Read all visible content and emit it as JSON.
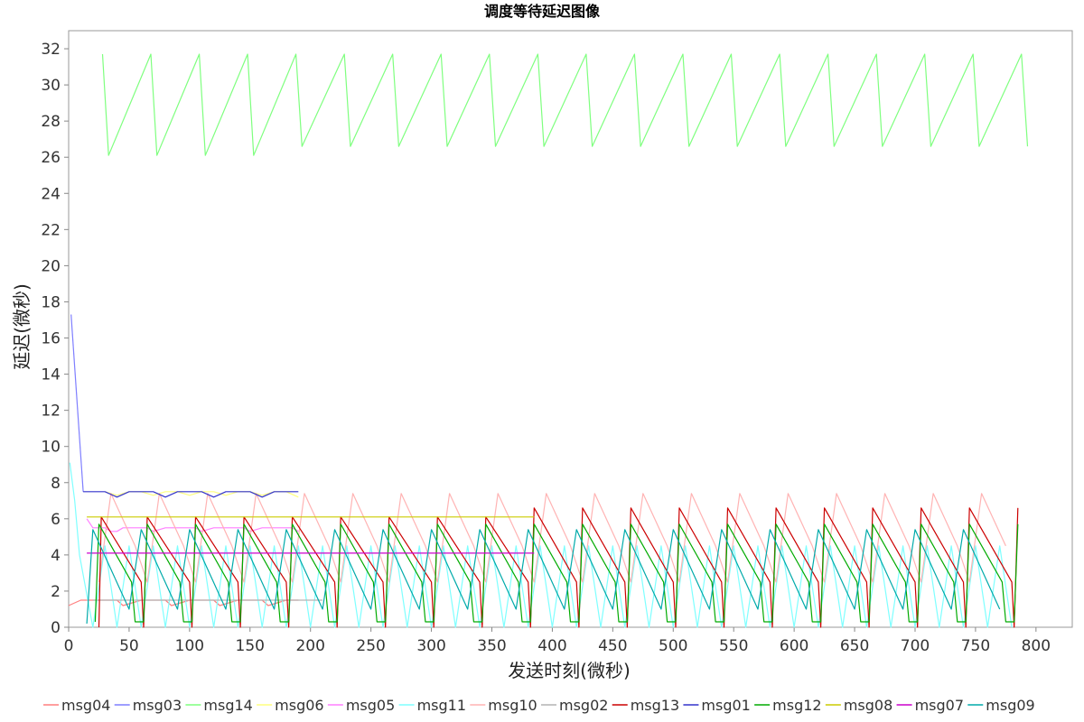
{
  "chart_data": {
    "type": "line",
    "title": "调度等待延迟图像",
    "xlabel": "发送时刻(微秒)",
    "ylabel": "延迟(微秒)",
    "xlim": [
      0,
      830
    ],
    "ylim": [
      0,
      33
    ],
    "xticks": [
      0,
      50,
      100,
      150,
      200,
      250,
      300,
      350,
      400,
      450,
      500,
      550,
      600,
      650,
      700,
      750,
      800
    ],
    "yticks": [
      0,
      2,
      4,
      6,
      8,
      10,
      12,
      14,
      16,
      18,
      20,
      22,
      24,
      26,
      28,
      30,
      32
    ],
    "legend_position": "bottom",
    "grid": false,
    "series": [
      {
        "name": "msg04",
        "color": "#ff7f7f",
        "x": [
          0,
          10,
          40,
          45,
          60,
          80,
          85,
          100,
          120,
          125,
          140,
          160,
          165,
          180,
          190
        ],
        "y": [
          1.2,
          1.5,
          1.5,
          1.2,
          1.5,
          1.5,
          1.2,
          1.5,
          1.5,
          1.2,
          1.5,
          1.5,
          1.2,
          1.5,
          1.5
        ]
      },
      {
        "name": "msg03",
        "color": "#7f7fff",
        "x": [
          2,
          12
        ],
        "y": [
          17.3,
          7.5
        ]
      },
      {
        "name": "msg14",
        "color": "#7fff7f",
        "x": [
          28,
          33,
          68,
          73,
          108,
          113,
          148,
          153,
          188,
          193,
          228,
          233,
          268,
          273,
          308,
          313,
          348,
          353,
          388,
          393,
          428,
          433,
          468,
          473,
          508,
          513,
          548,
          553,
          588,
          593,
          628,
          633,
          668,
          673,
          708,
          713,
          748,
          753,
          788,
          793
        ],
        "y": [
          31.7,
          26.1,
          31.7,
          26.1,
          31.7,
          26.1,
          31.7,
          26.1,
          31.7,
          26.6,
          31.7,
          26.6,
          31.7,
          26.6,
          31.7,
          26.6,
          31.7,
          26.6,
          31.7,
          26.6,
          31.7,
          26.6,
          31.7,
          26.6,
          31.7,
          26.6,
          31.7,
          26.6,
          31.7,
          26.6,
          31.7,
          26.6,
          31.7,
          26.6,
          31.7,
          26.6,
          31.7,
          26.6,
          31.7,
          26.6
        ]
      },
      {
        "name": "msg06",
        "color": "#ffff7f",
        "x": [
          30,
          40,
          50,
          60,
          70,
          80,
          90,
          100,
          110,
          120,
          130,
          140,
          150,
          160,
          170,
          180,
          190
        ],
        "y": [
          7.5,
          7.3,
          7.5,
          7.5,
          7.3,
          7.5,
          7.5,
          7.3,
          7.5,
          7.5,
          7.3,
          7.5,
          7.5,
          7.3,
          7.5,
          7.5,
          7.2
        ]
      },
      {
        "name": "msg05",
        "color": "#ff7fff",
        "x": [
          15,
          20,
          30,
          35,
          40,
          45,
          60,
          65,
          70,
          80,
          85,
          100,
          105,
          110,
          120,
          125,
          140,
          145,
          150,
          160,
          165,
          180,
          185,
          190
        ],
        "y": [
          6.0,
          5.5,
          5.5,
          5.3,
          5.3,
          5.5,
          5.5,
          5.5,
          5.3,
          5.5,
          5.5,
          5.5,
          5.5,
          5.3,
          5.5,
          5.5,
          5.5,
          5.5,
          5.3,
          5.5,
          5.5,
          5.5,
          5.5,
          5.3
        ]
      },
      {
        "name": "msg11",
        "color": "#7fffff",
        "x": [
          1,
          5,
          9,
          20,
          30,
          40,
          50,
          60,
          70,
          80,
          90,
          100,
          110,
          120,
          130,
          140,
          150,
          160,
          170,
          180,
          190,
          200,
          210,
          220,
          230,
          240,
          250,
          260,
          270,
          280,
          290,
          300,
          310,
          320,
          330,
          340,
          350,
          360,
          370,
          380,
          390,
          400,
          410,
          420,
          430,
          440,
          450,
          460,
          470,
          480,
          490,
          500,
          510,
          520,
          530,
          540,
          550,
          560,
          570,
          580,
          590,
          600,
          610,
          620,
          630,
          640,
          650,
          660,
          670,
          680,
          690,
          700,
          710,
          720,
          730,
          740,
          750,
          760,
          770,
          780
        ],
        "y": [
          9.1,
          7.0,
          4.0,
          0.0,
          4.5,
          0.0,
          4.5,
          0.0,
          4.5,
          0.0,
          4.5,
          0.0,
          4.5,
          0.0,
          4.5,
          0.0,
          4.5,
          0.0,
          4.5,
          0.0,
          4.5,
          0.0,
          4.5,
          0.0,
          4.5,
          0.0,
          4.5,
          0.0,
          4.5,
          0.0,
          4.5,
          0.0,
          4.5,
          0.0,
          4.5,
          0.0,
          4.5,
          0.0,
          4.5,
          0.0,
          4.5,
          0.0,
          4.5,
          0.0,
          4.5,
          0.0,
          4.5,
          0.0,
          4.5,
          0.0,
          4.5,
          0.0,
          4.5,
          0.0,
          4.5,
          0.0,
          4.5,
          0.0,
          4.5,
          0.0,
          4.5,
          0.0,
          4.5,
          0.0,
          4.5,
          0.0,
          4.5,
          0.0,
          4.5,
          0.0,
          4.5,
          0.0,
          4.5,
          0.0,
          4.5,
          0.0,
          4.5,
          0.0,
          4.5,
          0.0
        ]
      },
      {
        "name": "msg10",
        "color": "#ffb3b3",
        "x": [
          25,
          35,
          55,
          65,
          75,
          95,
          105,
          115,
          135,
          145,
          155,
          175,
          185,
          195,
          215,
          225,
          235,
          255,
          265,
          275,
          295,
          305,
          315,
          335,
          345,
          355,
          375,
          385,
          395,
          415,
          425,
          435,
          455,
          465,
          475,
          495,
          505,
          515,
          535,
          545,
          555,
          575,
          585,
          595,
          615,
          625,
          635,
          655,
          665,
          675,
          695,
          705,
          715,
          735,
          745,
          755,
          775
        ],
        "y": [
          2.5,
          7.4,
          4.5,
          2.5,
          7.4,
          4.5,
          2.5,
          7.4,
          4.5,
          2.5,
          7.4,
          4.5,
          2.5,
          7.4,
          4.5,
          2.5,
          7.4,
          4.5,
          2.5,
          7.4,
          4.5,
          2.5,
          7.4,
          4.5,
          2.5,
          7.4,
          4.5,
          2.5,
          7.4,
          4.5,
          2.5,
          7.4,
          4.5,
          2.5,
          7.4,
          4.5,
          2.5,
          7.4,
          4.5,
          2.5,
          7.4,
          4.5,
          2.5,
          7.4,
          4.5,
          2.5,
          7.4,
          4.5,
          2.5,
          7.4,
          4.5,
          2.5,
          7.4,
          4.5,
          2.5,
          7.4,
          4.5
        ]
      },
      {
        "name": "msg02",
        "color": "#b3b3b3",
        "x": [
          20,
          210
        ],
        "y": [
          1.5,
          1.5
        ]
      },
      {
        "name": "msg13",
        "color": "#cc0000",
        "x": [
          25,
          27,
          60,
          62,
          65,
          100,
          102,
          105,
          140,
          142,
          145,
          180,
          182,
          185,
          220,
          222,
          225,
          260,
          262,
          265,
          300,
          302,
          305,
          340,
          342,
          345,
          380,
          382,
          385,
          420,
          422,
          425,
          460,
          462,
          465,
          500,
          502,
          505,
          540,
          542,
          545,
          580,
          582,
          585,
          620,
          622,
          625,
          660,
          662,
          665,
          700,
          702,
          705,
          740,
          742,
          745,
          780,
          782,
          785
        ],
        "y": [
          0.0,
          6.1,
          2.5,
          0.0,
          6.1,
          2.5,
          0.0,
          6.1,
          2.5,
          0.0,
          6.1,
          2.5,
          0.0,
          6.1,
          2.5,
          0.0,
          6.1,
          2.5,
          0.0,
          6.1,
          2.5,
          0.0,
          6.1,
          2.5,
          0.0,
          6.1,
          2.5,
          0.0,
          6.6,
          2.5,
          0.0,
          6.6,
          2.5,
          0.0,
          6.6,
          2.5,
          0.0,
          6.6,
          2.5,
          0.0,
          6.6,
          2.5,
          0.0,
          6.6,
          2.5,
          0.0,
          6.6,
          2.5,
          0.0,
          6.6,
          2.5,
          0.0,
          6.6,
          2.5,
          0.0,
          6.6,
          2.5,
          0.0,
          6.6
        ]
      },
      {
        "name": "msg01",
        "color": "#3333cc",
        "x": [
          12,
          20,
          30,
          40,
          50,
          60,
          70,
          80,
          90,
          100,
          110,
          120,
          130,
          140,
          150,
          160,
          170,
          180,
          190
        ],
        "y": [
          7.5,
          7.5,
          7.5,
          7.2,
          7.5,
          7.5,
          7.5,
          7.2,
          7.5,
          7.5,
          7.5,
          7.2,
          7.5,
          7.5,
          7.5,
          7.2,
          7.5,
          7.5,
          7.5
        ]
      },
      {
        "name": "msg12",
        "color": "#00aa00",
        "x": [
          22,
          25,
          52,
          55,
          62,
          65,
          92,
          95,
          102,
          105,
          132,
          135,
          142,
          145,
          172,
          175,
          182,
          185,
          212,
          215,
          222,
          225,
          252,
          255,
          262,
          265,
          292,
          295,
          302,
          305,
          332,
          335,
          342,
          345,
          372,
          375,
          382,
          385,
          412,
          415,
          422,
          425,
          452,
          455,
          462,
          465,
          492,
          495,
          502,
          505,
          532,
          535,
          542,
          545,
          572,
          575,
          582,
          585,
          612,
          615,
          622,
          625,
          652,
          655,
          662,
          665,
          692,
          695,
          702,
          705,
          732,
          735,
          742,
          745,
          772,
          775,
          782,
          785
        ],
        "y": [
          0.3,
          5.7,
          2.5,
          0.3,
          0.3,
          5.7,
          2.5,
          0.3,
          0.3,
          5.7,
          2.5,
          0.3,
          0.3,
          5.7,
          2.5,
          0.3,
          0.3,
          5.7,
          2.5,
          0.3,
          0.3,
          5.7,
          2.5,
          0.3,
          0.3,
          5.7,
          2.5,
          0.3,
          0.3,
          5.7,
          2.5,
          0.3,
          0.3,
          5.7,
          2.5,
          0.3,
          0.3,
          5.7,
          2.5,
          0.3,
          0.3,
          5.7,
          2.5,
          0.3,
          0.3,
          5.7,
          2.5,
          0.3,
          0.3,
          5.7,
          2.5,
          0.3,
          0.3,
          5.7,
          2.5,
          0.3,
          0.3,
          5.7,
          2.5,
          0.3,
          0.3,
          5.7,
          2.5,
          0.3,
          0.3,
          5.7,
          2.5,
          0.3,
          0.3,
          5.7,
          2.5,
          0.3,
          0.3,
          5.7,
          2.5,
          0.3,
          0.3,
          5.7
        ]
      },
      {
        "name": "msg08",
        "color": "#cccc00",
        "x": [
          15,
          385
        ],
        "y": [
          6.1,
          6.1
        ]
      },
      {
        "name": "msg07",
        "color": "#cc00cc",
        "x": [
          15,
          385
        ],
        "y": [
          4.1,
          4.1
        ]
      },
      {
        "name": "msg09",
        "color": "#00aaaa",
        "x": [
          15,
          20,
          50,
          60,
          90,
          100,
          130,
          140,
          170,
          180,
          210,
          220,
          250,
          260,
          290,
          300,
          330,
          340,
          370,
          380,
          410,
          420,
          450,
          460,
          490,
          500,
          530,
          540,
          570,
          580,
          610,
          620,
          650,
          660,
          690,
          700,
          730,
          740,
          770
        ],
        "y": [
          0.2,
          5.4,
          1.0,
          5.4,
          1.0,
          5.4,
          1.0,
          5.4,
          1.0,
          5.4,
          1.0,
          5.4,
          1.0,
          5.4,
          1.0,
          5.4,
          1.0,
          5.4,
          1.0,
          5.4,
          1.0,
          5.4,
          1.0,
          5.4,
          1.0,
          5.4,
          1.0,
          5.4,
          1.0,
          5.4,
          1.0,
          5.4,
          1.0,
          5.4,
          1.0,
          5.4,
          1.0,
          5.4,
          1.0
        ]
      }
    ]
  }
}
